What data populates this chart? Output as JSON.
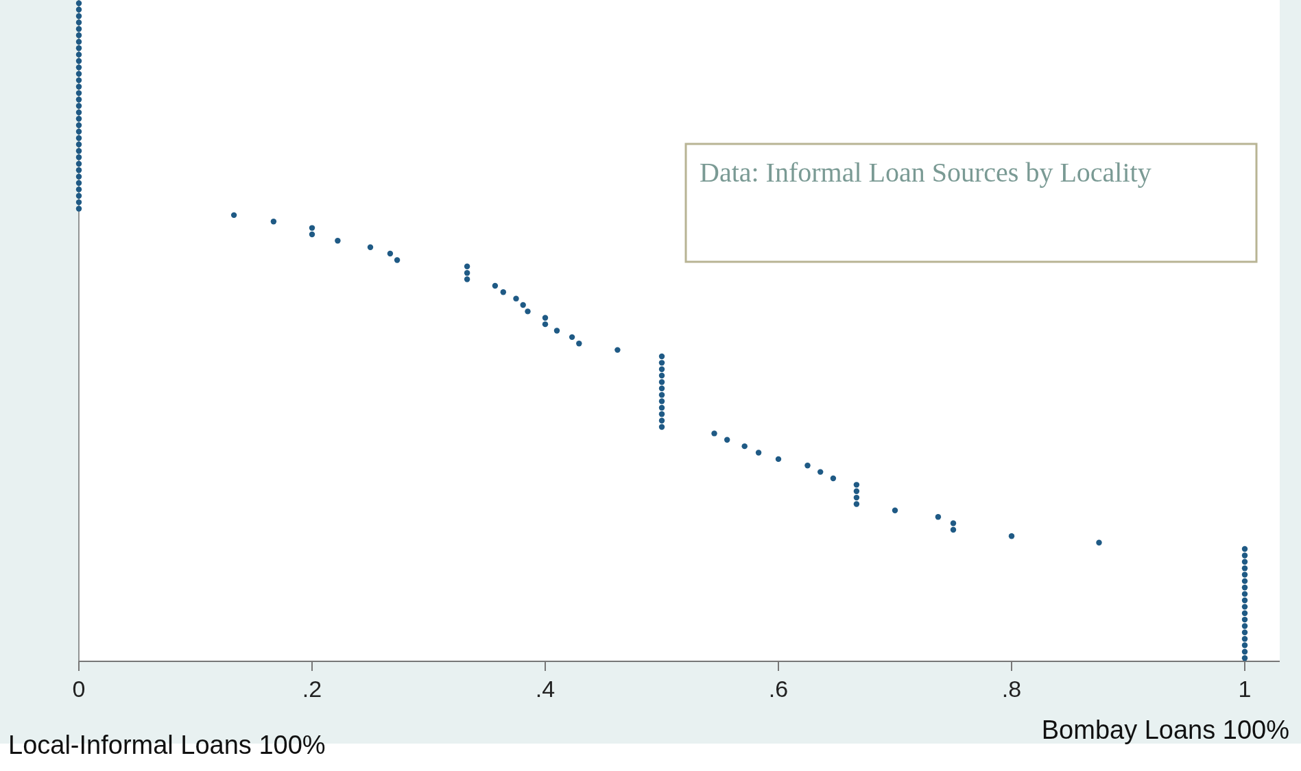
{
  "chart_data": {
    "type": "scatter",
    "orientation": "horizontal",
    "marker": "circle",
    "annotations": [
      "Data: Informal Loan Sources by Locality",
      "Local-Informal Loans 100%",
      "Bombay Loans 100%"
    ],
    "xlim": [
      0,
      1.03
    ],
    "xticks": [
      0,
      {
        "value": 0.2,
        "label": ".2"
      },
      {
        "value": 0.4,
        "label": ".4"
      },
      {
        "value": 0.6,
        "label": ".6"
      },
      {
        "value": 0.8,
        "label": ".8"
      },
      1
    ],
    "categories": [
      null,
      null,
      null,
      null,
      null,
      null,
      null,
      null,
      null,
      null,
      null,
      null,
      null,
      null,
      null,
      null,
      null,
      null,
      null,
      null,
      null,
      null,
      null,
      null,
      null,
      null,
      null,
      null,
      null,
      null,
      null,
      null,
      null,
      null,
      null,
      null,
      null,
      null,
      null,
      null,
      null,
      null,
      null,
      null,
      null,
      null,
      null,
      null,
      null,
      null,
      null,
      null,
      null,
      null,
      null,
      null,
      null,
      null,
      null,
      null,
      null,
      null,
      null,
      null,
      null,
      null,
      null,
      null,
      null,
      null,
      null,
      null,
      null,
      null,
      null,
      null,
      null,
      null,
      null,
      null,
      null,
      null,
      null,
      null,
      null,
      null,
      null,
      null,
      null,
      null,
      null,
      null,
      null,
      null,
      null,
      null,
      null,
      null,
      null,
      null,
      null,
      null,
      null
    ],
    "series": [
      {
        "color": "#1f5a85",
        "values": [
          0,
          0,
          0,
          0,
          0,
          0,
          0,
          0,
          0,
          0,
          0,
          0,
          0,
          0,
          0,
          0,
          0,
          0,
          0,
          0,
          0,
          0,
          0,
          0,
          0,
          0,
          0,
          0,
          0,
          0,
          0,
          0,
          0,
          0.133,
          0.167,
          0.2,
          0.2,
          0.222,
          0.25,
          0.267,
          0.273,
          0.333,
          0.333,
          0.333,
          0.357,
          0.364,
          0.375,
          0.381,
          0.385,
          0.4,
          0.4,
          0.41,
          0.423,
          0.429,
          0.462,
          0.5,
          0.5,
          0.5,
          0.5,
          0.5,
          0.5,
          0.5,
          0.5,
          0.5,
          0.5,
          0.5,
          0.5,
          0.545,
          0.556,
          0.571,
          0.583,
          0.6,
          0.625,
          0.636,
          0.647,
          0.667,
          0.667,
          0.667,
          0.667,
          0.7,
          0.737,
          0.75,
          0.75,
          0.8,
          0.875,
          1,
          1,
          1,
          1,
          1,
          1,
          1,
          1,
          1,
          1,
          1,
          1,
          1,
          1,
          1,
          1,
          1,
          1
        ]
      }
    ]
  }
}
